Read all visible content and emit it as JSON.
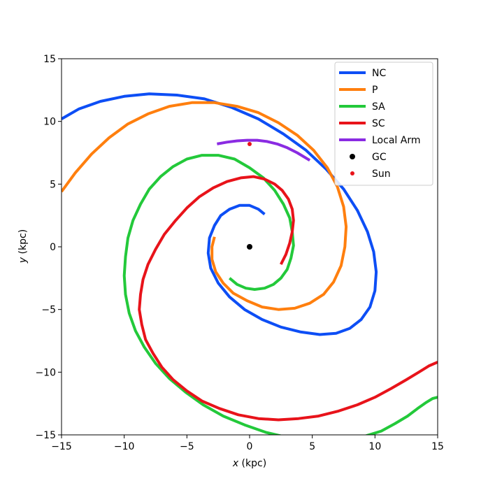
{
  "chart_data": {
    "type": "line",
    "title": "",
    "xlabel": {
      "var": "x",
      "unit": " (kpc)"
    },
    "ylabel": {
      "var": "y",
      "unit": " (kpc)"
    },
    "xlim": [
      -15,
      15
    ],
    "ylim": [
      -15,
      15
    ],
    "xticks": [
      -15,
      -10,
      -5,
      0,
      5,
      10,
      15
    ],
    "yticks": [
      -15,
      -10,
      -5,
      0,
      5,
      10,
      15
    ],
    "xtick_labels": [
      "−15",
      "−10",
      "−5",
      "0",
      "5",
      "10",
      "15"
    ],
    "ytick_labels": [
      "−15",
      "−10",
      "−5",
      "0",
      "5",
      "10",
      "15"
    ],
    "grid": false,
    "legend_position": "top-right",
    "series": [
      {
        "name": "NC",
        "kind": "line",
        "color": "#0d4ef5",
        "x": [
          1.2,
          0.7,
          0.0,
          -0.8,
          -1.6,
          -2.3,
          -2.8,
          -3.2,
          -3.3,
          -3.1,
          -2.5,
          -1.6,
          -0.4,
          1.0,
          2.5,
          4.1,
          5.6,
          6.9,
          8.0,
          8.9,
          9.6,
          10.0,
          10.1,
          9.9,
          9.4,
          8.6,
          7.5,
          6.1,
          4.5,
          2.7,
          0.7,
          -1.4,
          -3.6,
          -5.8,
          -8.0,
          -10.0,
          -11.9,
          -13.6,
          -15.0
        ],
        "y": [
          2.6,
          3.0,
          3.3,
          3.3,
          3.0,
          2.5,
          1.7,
          0.7,
          -0.5,
          -1.7,
          -2.9,
          -4.0,
          -5.0,
          -5.8,
          -6.4,
          -6.8,
          -7.0,
          -6.9,
          -6.5,
          -5.8,
          -4.8,
          -3.5,
          -2.0,
          -0.4,
          1.2,
          2.9,
          4.6,
          6.2,
          7.7,
          9.0,
          10.2,
          11.1,
          11.8,
          12.1,
          12.2,
          12.0,
          11.6,
          11.0,
          10.2
        ]
      },
      {
        "name": "P",
        "kind": "line",
        "color": "#ff7f0e",
        "x": [
          -2.8,
          -3.0,
          -3.0,
          -2.7,
          -2.1,
          -1.3,
          -0.2,
          1.0,
          2.3,
          3.6,
          4.8,
          5.9,
          6.7,
          7.3,
          7.6,
          7.7,
          7.5,
          7.0,
          6.2,
          5.1,
          3.8,
          2.3,
          0.7,
          -1.0,
          -2.8,
          -4.6,
          -6.4,
          -8.1,
          -9.7,
          -11.2,
          -12.6,
          -13.9,
          -15.0
        ],
        "y": [
          0.8,
          0.0,
          -1.0,
          -2.0,
          -2.9,
          -3.7,
          -4.3,
          -4.8,
          -5.0,
          -4.9,
          -4.5,
          -3.8,
          -2.8,
          -1.5,
          0.0,
          1.6,
          3.2,
          4.8,
          6.3,
          7.7,
          8.9,
          9.9,
          10.7,
          11.2,
          11.5,
          11.5,
          11.2,
          10.6,
          9.8,
          8.7,
          7.4,
          5.9,
          4.4
        ]
      },
      {
        "name": "SA",
        "kind": "line",
        "color": "#23c93a",
        "x": [
          -1.6,
          -1.0,
          -0.3,
          0.4,
          1.2,
          1.9,
          2.5,
          3.0,
          3.3,
          3.5,
          3.4,
          3.2,
          2.7,
          2.0,
          1.1,
          0.0,
          -1.2,
          -2.5,
          -3.8,
          -5.0,
          -6.1,
          -7.1,
          -8.0,
          -8.7,
          -9.3,
          -9.7,
          -9.9,
          -10.0,
          -9.9,
          -9.6,
          -9.1,
          -8.4,
          -7.5,
          -6.4,
          -5.1,
          -3.7,
          -2.1,
          -0.4,
          1.3,
          3.0,
          4.7,
          6.3,
          7.8,
          9.2,
          10.5,
          11.6,
          12.6,
          13.4,
          14.1,
          14.6,
          15.0
        ],
        "y": [
          -2.5,
          -3.0,
          -3.3,
          -3.4,
          -3.3,
          -3.0,
          -2.5,
          -1.8,
          -0.9,
          0.1,
          1.2,
          2.3,
          3.4,
          4.5,
          5.5,
          6.3,
          7.0,
          7.3,
          7.3,
          7.0,
          6.4,
          5.6,
          4.6,
          3.4,
          2.1,
          0.7,
          -0.8,
          -2.3,
          -3.8,
          -5.3,
          -6.7,
          -8.0,
          -9.3,
          -10.5,
          -11.6,
          -12.6,
          -13.5,
          -14.2,
          -14.8,
          -15.2,
          -15.4,
          -15.5,
          -15.4,
          -15.1,
          -14.7,
          -14.1,
          -13.5,
          -12.9,
          -12.4,
          -12.1,
          -12.0
        ]
      },
      {
        "name": "SC",
        "kind": "line",
        "color": "#e8131a",
        "x": [
          2.5,
          2.9,
          3.2,
          3.4,
          3.5,
          3.4,
          3.1,
          2.6,
          2.0,
          1.2,
          0.3,
          -0.7,
          -1.8,
          -2.9,
          -4.0,
          -5.0,
          -5.9,
          -6.8,
          -7.5,
          -8.1,
          -8.5,
          -8.7,
          -8.8,
          -8.6,
          -8.3,
          -7.7,
          -7.0,
          -6.1,
          -5.0,
          -3.8,
          -2.4,
          -0.9,
          0.7,
          2.3,
          3.9,
          5.5,
          7.1,
          8.6,
          10.0,
          11.3,
          12.5,
          13.5,
          14.3,
          15.0
        ],
        "y": [
          -1.4,
          -0.6,
          0.3,
          1.2,
          2.1,
          3.0,
          3.8,
          4.5,
          5.0,
          5.4,
          5.6,
          5.5,
          5.2,
          4.7,
          4.0,
          3.1,
          2.1,
          1.0,
          -0.2,
          -1.4,
          -2.6,
          -3.8,
          -5.0,
          -6.2,
          -7.4,
          -8.5,
          -9.6,
          -10.6,
          -11.5,
          -12.3,
          -12.9,
          -13.4,
          -13.7,
          -13.8,
          -13.7,
          -13.5,
          -13.1,
          -12.6,
          -12.0,
          -11.3,
          -10.6,
          -10.0,
          -9.5,
          -9.2
        ]
      },
      {
        "name": "Local Arm",
        "kind": "line",
        "color": "#8a2be2",
        "x": [
          -2.6,
          -1.8,
          -1.0,
          -0.2,
          0.6,
          1.4,
          2.2,
          3.0,
          3.8,
          4.8
        ],
        "y": [
          8.2,
          8.35,
          8.45,
          8.5,
          8.5,
          8.4,
          8.2,
          7.9,
          7.5,
          6.9
        ]
      },
      {
        "name": "GC",
        "kind": "point",
        "color": "#000000",
        "x": [
          0
        ],
        "y": [
          0
        ]
      },
      {
        "name": "Sun",
        "kind": "point",
        "color": "#e8131a",
        "x": [
          0
        ],
        "y": [
          8.2
        ]
      }
    ]
  }
}
